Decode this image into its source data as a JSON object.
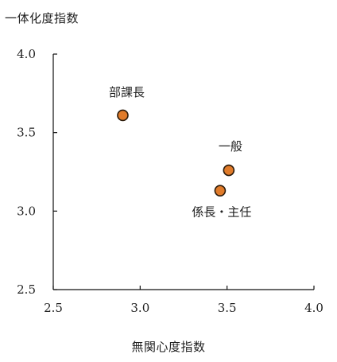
{
  "chart_data": {
    "type": "scatter",
    "ylabel": "一体化度指数",
    "xlabel": "無関心度指数",
    "xlim": [
      2.5,
      4.0
    ],
    "ylim": [
      2.5,
      4.0
    ],
    "xticks": [
      2.5,
      3.0,
      3.5,
      4.0
    ],
    "yticks": [
      2.5,
      3.0,
      3.5,
      4.0
    ],
    "xtick_labels": [
      "2.5",
      "3.0",
      "3.5",
      "4.0"
    ],
    "ytick_labels": [
      "2.5",
      "3.0",
      "3.5",
      "4.0"
    ],
    "grid": false,
    "points": [
      {
        "label": "部課長",
        "x": 2.9,
        "y": 3.61
      },
      {
        "label": "一般",
        "x": 3.51,
        "y": 3.26
      },
      {
        "label": "係長・主任",
        "x": 3.46,
        "y": 3.13
      }
    ],
    "marker_color": "#e07b2a",
    "marker_edge": "#2a1a0a"
  }
}
